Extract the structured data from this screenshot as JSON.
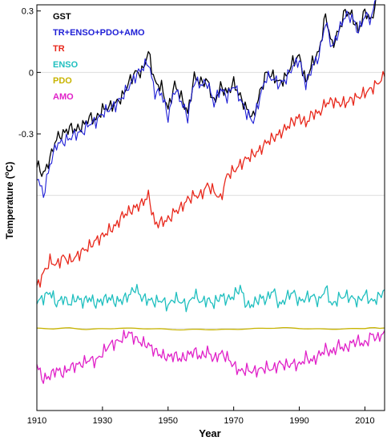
{
  "chart_data": {
    "type": "line",
    "xlabel": "Year",
    "ylabel": "Temperature (",
    "ylabel_super": "o",
    "ylabel_unit": "C)",
    "xlim": [
      1910,
      2016
    ],
    "xticks": [
      1910,
      1930,
      1950,
      1970,
      1990,
      2010
    ],
    "ylim": [
      -1.65,
      0.33
    ],
    "yticks": [
      0.3,
      0,
      -0.3
    ],
    "ytick_labels": [
      "0.3",
      "0",
      "-0.3"
    ],
    "legend_position": "top-left",
    "legend": [
      {
        "label": "GST",
        "color": "#000000"
      },
      {
        "label": "TR+ENSO+PDO+AMO",
        "color": "#1f1fd6"
      },
      {
        "label": "TR",
        "color": "#e8281c"
      },
      {
        "label": "ENSO",
        "color": "#1fbfbf"
      },
      {
        "label": "PDO",
        "color": "#c8b400"
      },
      {
        "label": "AMO",
        "color": "#e020c8"
      }
    ],
    "series": [
      {
        "name": "GST",
        "color": "#000000",
        "x": [
          1910,
          1912,
          1914,
          1916,
          1918,
          1920,
          1922,
          1924,
          1926,
          1928,
          1930,
          1932,
          1934,
          1936,
          1938,
          1940,
          1942,
          1944,
          1946,
          1948,
          1950,
          1952,
          1954,
          1956,
          1958,
          1960,
          1962,
          1964,
          1966,
          1968,
          1970,
          1972,
          1974,
          1976,
          1978,
          1980,
          1982,
          1984,
          1986,
          1988,
          1990,
          1992,
          1994,
          1996,
          1998,
          2000,
          2002,
          2004,
          2006,
          2008,
          2010,
          2012,
          2014,
          2016
        ],
        "y": [
          -0.45,
          -0.5,
          -0.42,
          -0.32,
          -0.3,
          -0.27,
          -0.28,
          -0.26,
          -0.22,
          -0.23,
          -0.18,
          -0.17,
          -0.15,
          -0.12,
          -0.05,
          0.0,
          0.0,
          0.1,
          -0.05,
          -0.07,
          -0.18,
          -0.06,
          -0.12,
          -0.2,
          -0.02,
          -0.05,
          -0.04,
          -0.15,
          -0.07,
          -0.1,
          -0.05,
          -0.12,
          -0.18,
          -0.22,
          -0.1,
          0.0,
          -0.02,
          -0.05,
          -0.02,
          0.05,
          0.08,
          -0.05,
          0.05,
          0.1,
          0.28,
          0.13,
          0.2,
          0.3,
          0.28,
          0.2,
          0.3,
          0.25,
          0.4,
          0.5
        ]
      },
      {
        "name": "TR+ENSO+PDO+AMO",
        "color": "#1f1fd6",
        "x": [
          1910,
          1912,
          1914,
          1916,
          1918,
          1920,
          1922,
          1924,
          1926,
          1928,
          1930,
          1932,
          1934,
          1936,
          1938,
          1940,
          1942,
          1944,
          1946,
          1948,
          1950,
          1952,
          1954,
          1956,
          1958,
          1960,
          1962,
          1964,
          1966,
          1968,
          1970,
          1972,
          1974,
          1976,
          1978,
          1980,
          1982,
          1984,
          1986,
          1988,
          1990,
          1992,
          1994,
          1996,
          1998,
          2000,
          2002,
          2004,
          2006,
          2008,
          2010,
          2012,
          2014,
          2016
        ],
        "y": [
          -0.5,
          -0.6,
          -0.45,
          -0.35,
          -0.34,
          -0.32,
          -0.3,
          -0.29,
          -0.25,
          -0.24,
          -0.2,
          -0.18,
          -0.16,
          -0.12,
          -0.07,
          -0.02,
          0.02,
          0.05,
          -0.1,
          -0.1,
          -0.22,
          -0.08,
          -0.14,
          -0.22,
          -0.04,
          -0.06,
          -0.05,
          -0.15,
          -0.08,
          -0.12,
          -0.06,
          -0.13,
          -0.2,
          -0.24,
          -0.12,
          -0.02,
          -0.03,
          -0.06,
          -0.03,
          0.03,
          0.06,
          -0.06,
          0.03,
          0.08,
          0.25,
          0.12,
          0.2,
          0.28,
          0.27,
          0.2,
          0.28,
          0.26,
          0.42,
          0.55
        ]
      },
      {
        "name": "TR",
        "color": "#e8281c",
        "x": [
          1910,
          1912,
          1914,
          1916,
          1918,
          1920,
          1922,
          1924,
          1926,
          1928,
          1930,
          1932,
          1934,
          1936,
          1938,
          1940,
          1942,
          1944,
          1946,
          1948,
          1950,
          1952,
          1954,
          1956,
          1958,
          1960,
          1962,
          1964,
          1966,
          1968,
          1970,
          1972,
          1974,
          1976,
          1978,
          1980,
          1982,
          1984,
          1986,
          1988,
          1990,
          1992,
          1994,
          1996,
          1998,
          2000,
          2002,
          2004,
          2006,
          2008,
          2010,
          2012,
          2014,
          2016
        ],
        "y": [
          -1.05,
          -0.98,
          -0.92,
          -0.94,
          -0.9,
          -0.92,
          -0.9,
          -0.87,
          -0.85,
          -0.82,
          -0.8,
          -0.77,
          -0.75,
          -0.7,
          -0.68,
          -0.66,
          -0.64,
          -0.6,
          -0.74,
          -0.73,
          -0.72,
          -0.68,
          -0.66,
          -0.62,
          -0.6,
          -0.6,
          -0.55,
          -0.58,
          -0.62,
          -0.5,
          -0.48,
          -0.45,
          -0.42,
          -0.4,
          -0.38,
          -0.34,
          -0.32,
          -0.3,
          -0.27,
          -0.24,
          -0.22,
          -0.25,
          -0.2,
          -0.2,
          -0.15,
          -0.14,
          -0.15,
          -0.15,
          -0.13,
          -0.12,
          -0.1,
          -0.08,
          -0.05,
          -0.02
        ]
      },
      {
        "name": "ENSO",
        "color": "#1fbfbf",
        "x": [
          1910,
          1912,
          1914,
          1916,
          1918,
          1920,
          1922,
          1924,
          1926,
          1928,
          1930,
          1932,
          1934,
          1936,
          1938,
          1940,
          1942,
          1944,
          1946,
          1948,
          1950,
          1952,
          1954,
          1956,
          1958,
          1960,
          1962,
          1964,
          1966,
          1968,
          1970,
          1972,
          1974,
          1976,
          1978,
          1980,
          1982,
          1984,
          1986,
          1988,
          1990,
          1992,
          1994,
          1996,
          1998,
          2000,
          2002,
          2004,
          2006,
          2008,
          2010,
          2012,
          2014,
          2016
        ],
        "y": [
          -1.12,
          -1.1,
          -1.07,
          -1.13,
          -1.1,
          -1.13,
          -1.1,
          -1.12,
          -1.1,
          -1.13,
          -1.11,
          -1.1,
          -1.12,
          -1.11,
          -1.09,
          -1.05,
          -1.1,
          -1.11,
          -1.12,
          -1.11,
          -1.14,
          -1.1,
          -1.12,
          -1.14,
          -1.08,
          -1.12,
          -1.11,
          -1.13,
          -1.09,
          -1.11,
          -1.09,
          -1.05,
          -1.14,
          -1.13,
          -1.1,
          -1.11,
          -1.06,
          -1.14,
          -1.1,
          -1.07,
          -1.12,
          -1.1,
          -1.09,
          -1.12,
          -1.05,
          -1.14,
          -1.1,
          -1.09,
          -1.1,
          -1.12,
          -1.08,
          -1.12,
          -1.1,
          -1.06
        ]
      },
      {
        "name": "PDO",
        "color": "#c8b400",
        "x": [
          1910,
          1915,
          1920,
          1925,
          1930,
          1935,
          1940,
          1945,
          1950,
          1955,
          1960,
          1965,
          1970,
          1975,
          1980,
          1985,
          1990,
          1995,
          2000,
          2005,
          2010,
          2016
        ],
        "y": [
          -1.25,
          -1.252,
          -1.248,
          -1.253,
          -1.25,
          -1.247,
          -1.249,
          -1.252,
          -1.255,
          -1.257,
          -1.253,
          -1.254,
          -1.252,
          -1.251,
          -1.249,
          -1.248,
          -1.25,
          -1.252,
          -1.251,
          -1.25,
          -1.248,
          -1.247
        ]
      },
      {
        "name": "AMO",
        "color": "#e020c8",
        "x": [
          1910,
          1912,
          1914,
          1916,
          1918,
          1920,
          1922,
          1924,
          1926,
          1928,
          1930,
          1932,
          1934,
          1936,
          1938,
          1940,
          1942,
          1944,
          1946,
          1948,
          1950,
          1952,
          1954,
          1956,
          1958,
          1960,
          1962,
          1964,
          1966,
          1968,
          1970,
          1972,
          1974,
          1976,
          1978,
          1980,
          1982,
          1984,
          1986,
          1988,
          1990,
          1992,
          1994,
          1996,
          1998,
          2000,
          2002,
          2004,
          2006,
          2008,
          2010,
          2012,
          2014,
          2016
        ],
        "y": [
          -1.43,
          -1.5,
          -1.48,
          -1.45,
          -1.47,
          -1.44,
          -1.43,
          -1.42,
          -1.4,
          -1.41,
          -1.37,
          -1.33,
          -1.32,
          -1.3,
          -1.27,
          -1.3,
          -1.32,
          -1.33,
          -1.36,
          -1.38,
          -1.39,
          -1.38,
          -1.4,
          -1.38,
          -1.36,
          -1.39,
          -1.36,
          -1.4,
          -1.37,
          -1.39,
          -1.43,
          -1.46,
          -1.45,
          -1.46,
          -1.45,
          -1.44,
          -1.45,
          -1.42,
          -1.43,
          -1.42,
          -1.43,
          -1.39,
          -1.41,
          -1.38,
          -1.35,
          -1.37,
          -1.33,
          -1.35,
          -1.32,
          -1.31,
          -1.33,
          -1.28,
          -1.3,
          -1.26
        ]
      }
    ]
  }
}
